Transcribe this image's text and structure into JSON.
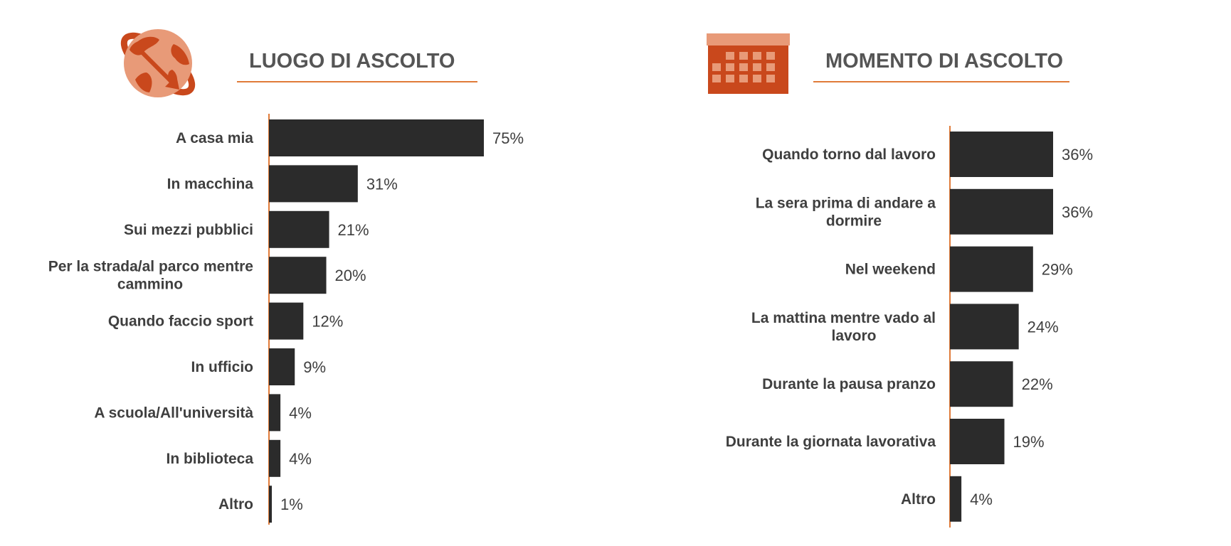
{
  "colors": {
    "accent": "#e07b39",
    "icon_dark": "#c9481c",
    "icon_light": "#e89a78",
    "bar": "#2b2b2b",
    "text": "#3f3f3f",
    "title": "#555555"
  },
  "luogo": {
    "title": "LUOGO DI ASCOLTO",
    "icon": "globe-arrow-icon",
    "chart_data": {
      "type": "bar",
      "orientation": "horizontal",
      "categories": [
        [
          "A casa mia"
        ],
        [
          "In macchina"
        ],
        [
          "Sui mezzi pubblici"
        ],
        [
          "Per la strada/al parco mentre",
          "cammino"
        ],
        [
          "Quando faccio sport"
        ],
        [
          "In ufficio"
        ],
        [
          "A scuola/All'università"
        ],
        [
          "In biblioteca"
        ],
        [
          "Altro"
        ]
      ],
      "values": [
        75,
        31,
        21,
        20,
        12,
        9,
        4,
        4,
        1
      ],
      "value_labels": [
        "75%",
        "31%",
        "21%",
        "20%",
        "12%",
        "9%",
        "4%",
        "4%",
        "1%"
      ],
      "unit": "%",
      "xlim": [
        0,
        100
      ],
      "grid": false
    }
  },
  "momento": {
    "title": "MOMENTO DI ASCOLTO",
    "icon": "calendar-icon",
    "chart_data": {
      "type": "bar",
      "orientation": "horizontal",
      "categories": [
        [
          "Quando torno dal lavoro"
        ],
        [
          "La sera prima di andare a",
          "dormire"
        ],
        [
          "Nel weekend"
        ],
        [
          "La mattina mentre vado al",
          "lavoro"
        ],
        [
          "Durante la pausa pranzo"
        ],
        [
          "Durante la giornata lavorativa"
        ],
        [
          "Altro"
        ]
      ],
      "values": [
        36,
        36,
        29,
        24,
        22,
        19,
        4
      ],
      "value_labels": [
        "36%",
        "36%",
        "29%",
        "24%",
        "22%",
        "19%",
        "4%"
      ],
      "unit": "%",
      "xlim": [
        0,
        100
      ],
      "grid": false
    }
  }
}
